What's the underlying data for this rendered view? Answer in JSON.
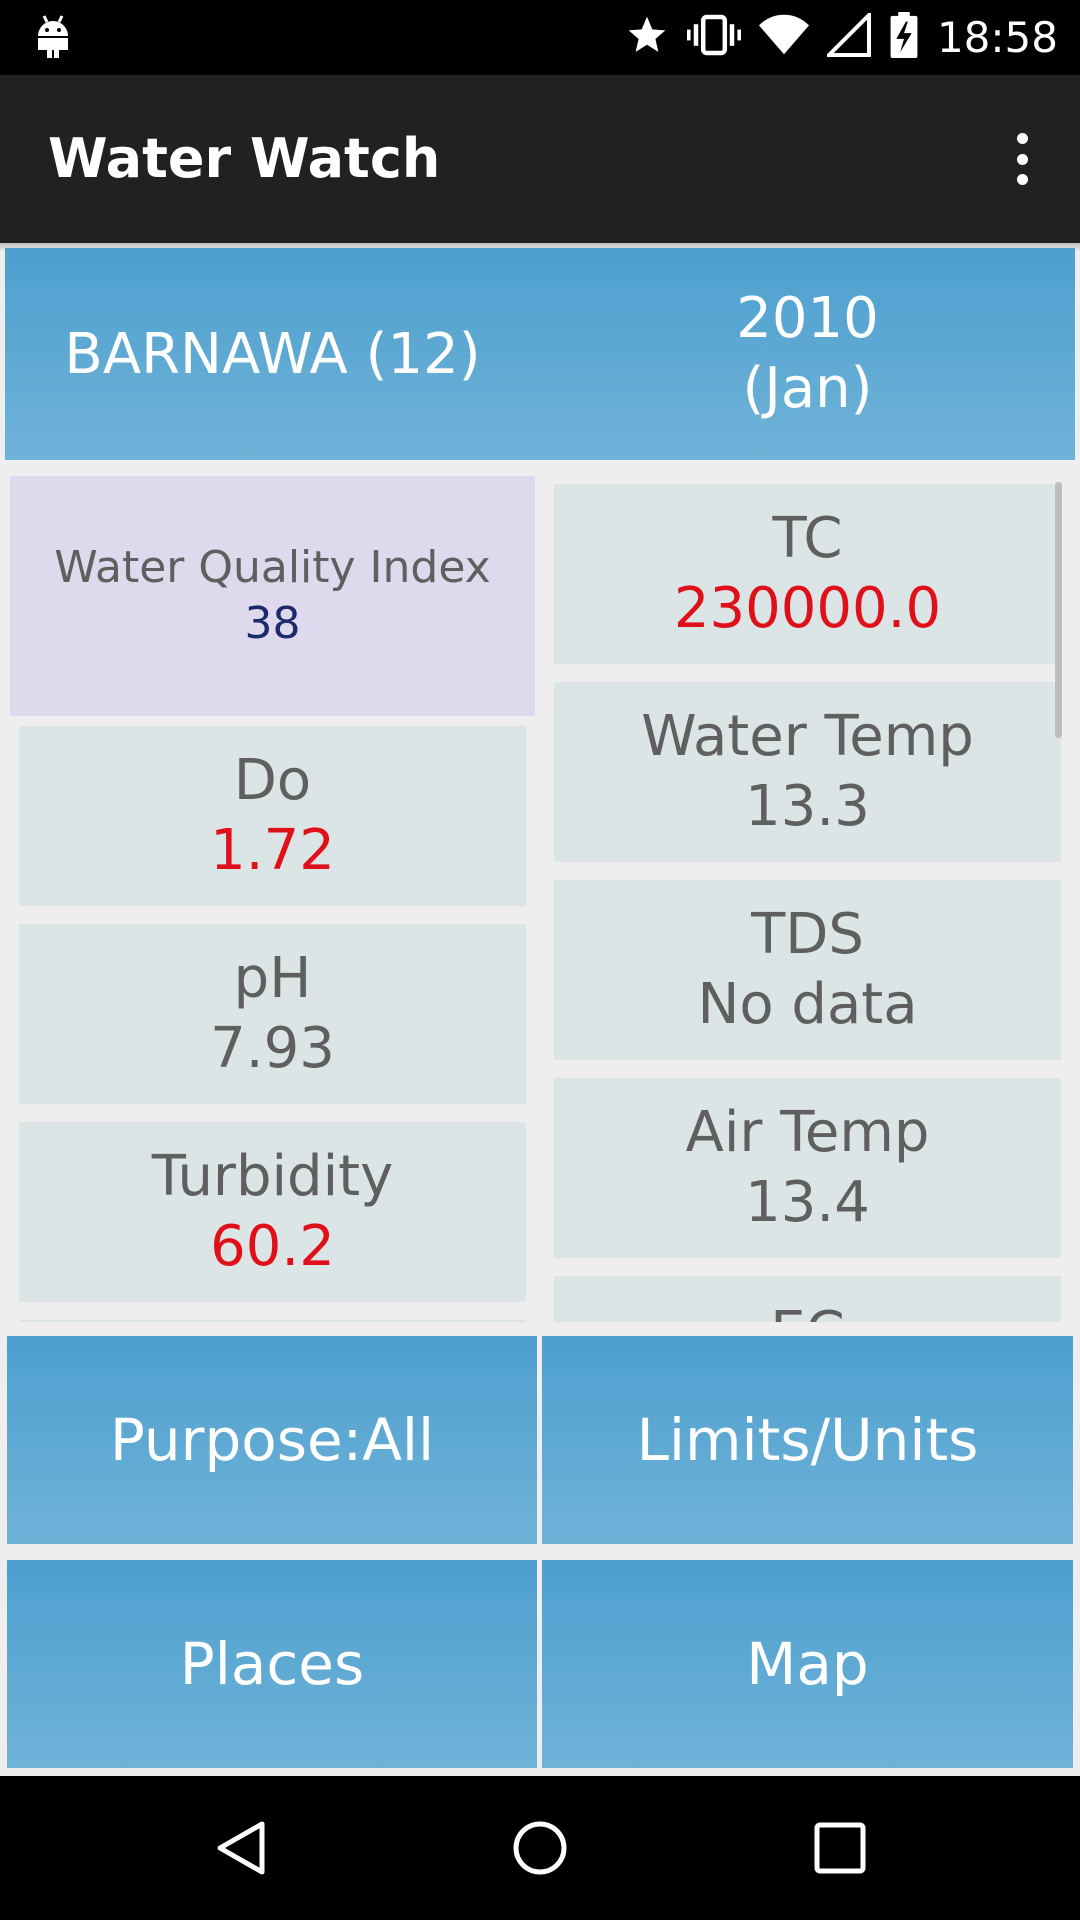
{
  "status_bar": {
    "time": "18:58",
    "icons": [
      "android-debug-icon",
      "star-icon",
      "vibrate-icon",
      "wifi-icon",
      "signal-icon",
      "battery-charging-icon"
    ]
  },
  "action_bar": {
    "title": "Water Watch",
    "menu_icon": "overflow-menu-icon"
  },
  "header": {
    "station": "BARNAWA (12)",
    "year": "2010",
    "month": "(Jan)"
  },
  "left_column": [
    {
      "name": "Water Quality Index",
      "value": "38",
      "highlight": "wqi"
    },
    {
      "name": "Do",
      "value": "1.72",
      "alert": true
    },
    {
      "name": "pH",
      "value": "7.93",
      "alert": false
    },
    {
      "name": "Turbidity",
      "value": "60.2",
      "alert": true
    }
  ],
  "right_column": [
    {
      "name": "TC",
      "value": "230000.0",
      "alert": true
    },
    {
      "name": "Water Temp",
      "value": "13.3",
      "alert": false
    },
    {
      "name": "TDS",
      "value": "No data",
      "alert": false
    },
    {
      "name": "Air Temp",
      "value": "13.4",
      "alert": false
    },
    {
      "name": "EC",
      "value": "",
      "alert": false
    }
  ],
  "buttons": {
    "purpose": "Purpose:All",
    "limits": "Limits/Units",
    "places": "Places",
    "map": "Map"
  },
  "nav_bar": {
    "icons": [
      "back-icon",
      "home-icon",
      "recents-icon"
    ]
  },
  "colors": {
    "accent_blue": "#4d9fcf",
    "alert_red": "#e0101b",
    "wqi_value": "#1b2a6b",
    "tile_bg": "#dce5e6",
    "wqi_bg": "#ded9ec"
  }
}
